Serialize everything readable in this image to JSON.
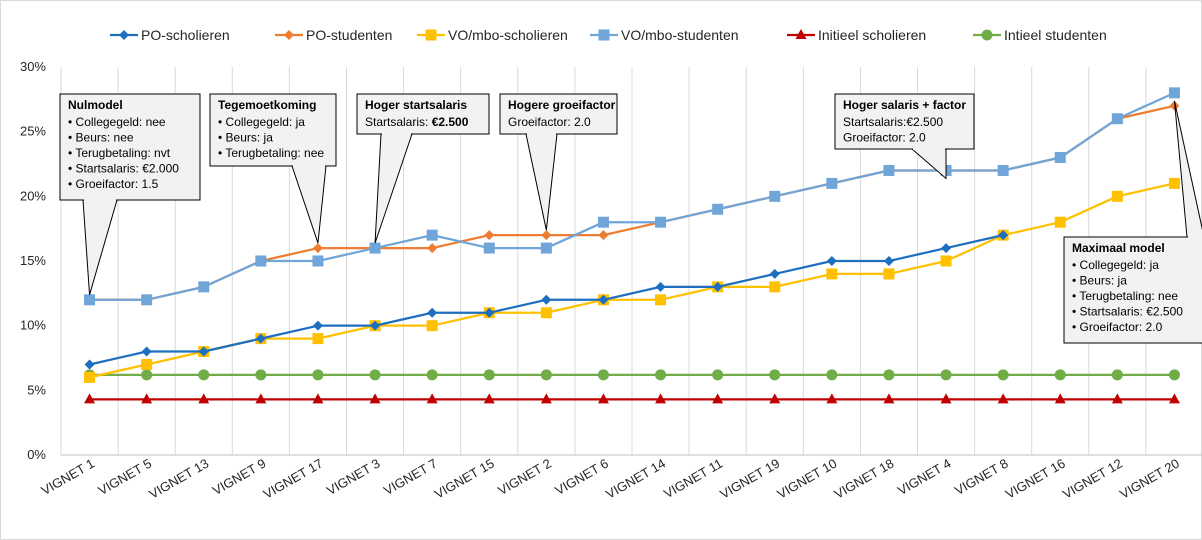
{
  "chart_data": {
    "type": "line",
    "categories": [
      "VIGNET 1",
      "VIGNET 5",
      "VIGNET 13",
      "VIGNET 9",
      "VIGNET 17",
      "VIGNET 3",
      "VIGNET 7",
      "VIGNET 15",
      "VIGNET 2",
      "VIGNET 6",
      "VIGNET 14",
      "VIGNET 11",
      "VIGNET 19",
      "VIGNET 10",
      "VIGNET 18",
      "VIGNET 4",
      "VIGNET 8",
      "VIGNET 16",
      "VIGNET 12",
      "VIGNET 20"
    ],
    "ylim": [
      0,
      30
    ],
    "yticks": [
      0,
      5,
      10,
      15,
      20,
      25,
      30
    ],
    "ytick_labels": [
      "0%",
      "5%",
      "10%",
      "15%",
      "20%",
      "25%",
      "30%"
    ],
    "grid": "vertical",
    "legend_position": "top",
    "series": [
      {
        "name": "PO-scholieren",
        "color": "#1F6FC0",
        "marker": "diamond",
        "values": [
          7,
          8,
          8,
          9,
          10,
          10,
          11,
          11,
          12,
          12,
          13,
          13,
          14,
          15,
          15,
          16,
          17,
          null,
          null,
          null
        ]
      },
      {
        "name": "PO-studenten",
        "color": "#ED7D31",
        "marker": "diamond",
        "values": [
          12,
          12,
          13,
          15,
          16,
          16,
          16,
          17,
          17,
          17,
          18,
          19,
          20,
          21,
          22,
          22,
          22,
          23,
          26,
          27
        ]
      },
      {
        "name": "VO/mbo-scholieren",
        "color": "#FFC000",
        "marker": "square",
        "values": [
          6,
          7,
          8,
          9,
          9,
          10,
          10,
          11,
          11,
          12,
          12,
          13,
          13,
          14,
          14,
          15,
          17,
          18,
          20,
          21
        ]
      },
      {
        "name": "VO/mbo-studenten",
        "color": "#6FA5D8",
        "marker": "square",
        "values": [
          12,
          12,
          13,
          15,
          15,
          16,
          17,
          16,
          16,
          18,
          18,
          19,
          20,
          21,
          22,
          22,
          22,
          23,
          26,
          28
        ]
      },
      {
        "name": "Initieel scholieren",
        "color": "#C00000",
        "marker": "triangle",
        "values": [
          4.3,
          4.3,
          4.3,
          4.3,
          4.3,
          4.3,
          4.3,
          4.3,
          4.3,
          4.3,
          4.3,
          4.3,
          4.3,
          4.3,
          4.3,
          4.3,
          4.3,
          4.3,
          4.3,
          4.3
        ]
      },
      {
        "name": "Intieel studenten",
        "color": "#70AD47",
        "marker": "circle",
        "values": [
          6.2,
          6.2,
          6.2,
          6.2,
          6.2,
          6.2,
          6.2,
          6.2,
          6.2,
          6.2,
          6.2,
          6.2,
          6.2,
          6.2,
          6.2,
          6.2,
          6.2,
          6.2,
          6.2,
          6.2
        ]
      }
    ],
    "annotations": [
      {
        "title": "Nulmodel",
        "lines": [
          "• Collegegeld: nee",
          "• Beurs: nee",
          "• Terugbetaling: nvt",
          "• Startsalaris: €2.000",
          "• Groeifactor: 1.5"
        ],
        "target_category": "VIGNET 1"
      },
      {
        "title": "Tegemoetkoming",
        "lines": [
          "• Collegegeld: ja",
          "• Beurs: ja",
          "• Terugbetaling: nee"
        ],
        "target_category": "VIGNET 17"
      },
      {
        "title": "Hoger startsalaris",
        "lines": [
          [
            "Startsalaris: ",
            "€2.500"
          ]
        ],
        "target_category": "VIGNET 3"
      },
      {
        "title": "Hogere groeifactor",
        "lines": [
          "Groeifactor: 2.0"
        ],
        "target_category": "VIGNET 2"
      },
      {
        "title": "Hoger salaris + factor",
        "lines": [
          "Startsalaris:€2.500",
          "Groeifactor: 2.0"
        ],
        "target_category": "VIGNET 4"
      },
      {
        "title": "Maximaal model",
        "lines": [
          "• Collegegeld: ja",
          "• Beurs: ja",
          "• Terugbetaling: nee",
          "• Startsalaris: €2.500",
          "• Groeifactor: 2.0"
        ],
        "target_category": "VIGNET 20"
      }
    ]
  }
}
